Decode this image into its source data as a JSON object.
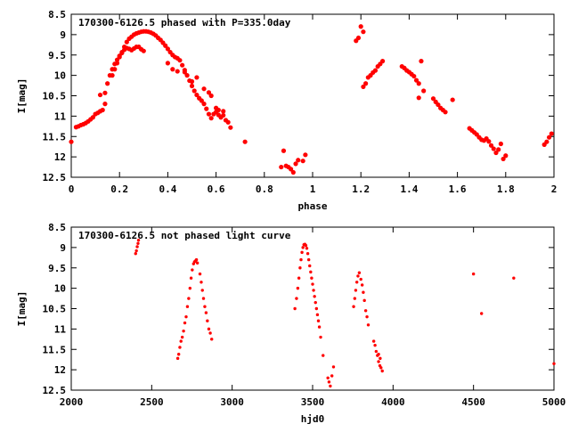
{
  "chart_data": [
    {
      "type": "scatter",
      "title": "170300-6126.5 phased with P=335.0day",
      "xlabel": "phase",
      "ylabel": "I[mag]",
      "xlim": [
        0,
        2
      ],
      "ylim": [
        12.5,
        8.5
      ],
      "y_inverted": true,
      "xticks": [
        "0",
        "0.2",
        "0.4",
        "0.6",
        "0.8",
        "1",
        "1.2",
        "1.4",
        "1.6",
        "1.8",
        "2"
      ],
      "xtick_values": [
        0,
        0.2,
        0.4,
        0.6,
        0.8,
        1.0,
        1.2,
        1.4,
        1.6,
        1.8,
        2.0
      ],
      "yticks": [
        "8.5",
        "9",
        "9.5",
        "10",
        "10.5",
        "11",
        "11.5",
        "12",
        "12.5"
      ],
      "ytick_values": [
        8.5,
        9,
        9.5,
        10,
        10.5,
        11,
        11.5,
        12,
        12.5
      ],
      "grid": false,
      "color": "#ff0000",
      "marker": "filled-circle-large",
      "points": [
        [
          0.0,
          11.63
        ],
        [
          0.02,
          11.27
        ],
        [
          0.03,
          11.25
        ],
        [
          0.04,
          11.22
        ],
        [
          0.05,
          11.2
        ],
        [
          0.06,
          11.17
        ],
        [
          0.07,
          11.13
        ],
        [
          0.08,
          11.08
        ],
        [
          0.09,
          11.03
        ],
        [
          0.1,
          10.95
        ],
        [
          0.11,
          10.92
        ],
        [
          0.12,
          10.88
        ],
        [
          0.13,
          10.85
        ],
        [
          0.14,
          10.7
        ],
        [
          0.12,
          10.48
        ],
        [
          0.14,
          10.43
        ],
        [
          0.15,
          10.2
        ],
        [
          0.16,
          10.0
        ],
        [
          0.17,
          9.85
        ],
        [
          0.18,
          9.72
        ],
        [
          0.19,
          9.62
        ],
        [
          0.2,
          9.52
        ],
        [
          0.21,
          9.43
        ],
        [
          0.22,
          9.37
        ],
        [
          0.23,
          9.33
        ],
        [
          0.24,
          9.35
        ],
        [
          0.25,
          9.38
        ],
        [
          0.26,
          9.34
        ],
        [
          0.27,
          9.3
        ],
        [
          0.28,
          9.3
        ],
        [
          0.29,
          9.36
        ],
        [
          0.3,
          9.4
        ],
        [
          0.17,
          10.0
        ],
        [
          0.18,
          9.85
        ],
        [
          0.19,
          9.7
        ],
        [
          0.2,
          9.55
        ],
        [
          0.21,
          9.45
        ],
        [
          0.22,
          9.3
        ],
        [
          0.23,
          9.18
        ],
        [
          0.24,
          9.1
        ],
        [
          0.25,
          9.05
        ],
        [
          0.26,
          9.0
        ],
        [
          0.27,
          8.97
        ],
        [
          0.28,
          8.95
        ],
        [
          0.29,
          8.93
        ],
        [
          0.3,
          8.92
        ],
        [
          0.31,
          8.92
        ],
        [
          0.32,
          8.93
        ],
        [
          0.33,
          8.95
        ],
        [
          0.34,
          8.98
        ],
        [
          0.35,
          9.02
        ],
        [
          0.36,
          9.08
        ],
        [
          0.37,
          9.13
        ],
        [
          0.38,
          9.2
        ],
        [
          0.39,
          9.27
        ],
        [
          0.4,
          9.35
        ],
        [
          0.41,
          9.43
        ],
        [
          0.42,
          9.5
        ],
        [
          0.43,
          9.55
        ],
        [
          0.44,
          9.58
        ],
        [
          0.45,
          9.63
        ],
        [
          0.46,
          9.75
        ],
        [
          0.47,
          9.87
        ],
        [
          0.48,
          10.0
        ],
        [
          0.49,
          10.13
        ],
        [
          0.5,
          10.26
        ],
        [
          0.51,
          10.38
        ],
        [
          0.52,
          10.48
        ],
        [
          0.53,
          10.56
        ],
        [
          0.54,
          10.62
        ],
        [
          0.55,
          10.7
        ],
        [
          0.56,
          10.82
        ],
        [
          0.57,
          10.95
        ],
        [
          0.58,
          11.05
        ],
        [
          0.59,
          10.95
        ],
        [
          0.6,
          10.9
        ],
        [
          0.61,
          10.97
        ],
        [
          0.62,
          11.03
        ],
        [
          0.63,
          10.98
        ],
        [
          0.64,
          11.1
        ],
        [
          0.65,
          11.15
        ],
        [
          0.66,
          11.28
        ],
        [
          0.4,
          9.7
        ],
        [
          0.42,
          9.85
        ],
        [
          0.44,
          9.9
        ],
        [
          0.47,
          9.92
        ],
        [
          0.5,
          10.15
        ],
        [
          0.52,
          10.05
        ],
        [
          0.55,
          10.33
        ],
        [
          0.57,
          10.42
        ],
        [
          0.58,
          10.5
        ],
        [
          0.6,
          10.8
        ],
        [
          0.61,
          10.85
        ],
        [
          0.63,
          10.88
        ],
        [
          0.72,
          11.63
        ],
        [
          0.87,
          12.25
        ],
        [
          0.88,
          11.85
        ],
        [
          0.89,
          12.22
        ],
        [
          0.9,
          12.25
        ],
        [
          0.91,
          12.3
        ],
        [
          0.92,
          12.38
        ],
        [
          0.93,
          12.17
        ],
        [
          0.94,
          12.08
        ],
        [
          0.96,
          12.1
        ],
        [
          0.97,
          11.95
        ],
        [
          1.18,
          9.15
        ],
        [
          1.19,
          9.08
        ],
        [
          1.2,
          8.8
        ],
        [
          1.21,
          8.93
        ],
        [
          1.21,
          10.28
        ],
        [
          1.22,
          10.2
        ],
        [
          1.23,
          10.05
        ],
        [
          1.24,
          10.0
        ],
        [
          1.25,
          9.93
        ],
        [
          1.26,
          9.88
        ],
        [
          1.27,
          9.78
        ],
        [
          1.28,
          9.72
        ],
        [
          1.29,
          9.65
        ],
        [
          1.37,
          9.78
        ],
        [
          1.38,
          9.82
        ],
        [
          1.39,
          9.88
        ],
        [
          1.4,
          9.92
        ],
        [
          1.41,
          9.97
        ],
        [
          1.42,
          10.02
        ],
        [
          1.43,
          10.12
        ],
        [
          1.44,
          10.2
        ],
        [
          1.45,
          9.65
        ],
        [
          1.44,
          10.55
        ],
        [
          1.46,
          10.38
        ],
        [
          1.5,
          10.57
        ],
        [
          1.51,
          10.65
        ],
        [
          1.52,
          10.72
        ],
        [
          1.53,
          10.8
        ],
        [
          1.54,
          10.85
        ],
        [
          1.55,
          10.9
        ],
        [
          1.58,
          10.6
        ],
        [
          1.65,
          11.3
        ],
        [
          1.66,
          11.35
        ],
        [
          1.67,
          11.4
        ],
        [
          1.68,
          11.45
        ],
        [
          1.69,
          11.52
        ],
        [
          1.7,
          11.58
        ],
        [
          1.71,
          11.6
        ],
        [
          1.72,
          11.55
        ],
        [
          1.73,
          11.62
        ],
        [
          1.74,
          11.72
        ],
        [
          1.75,
          11.8
        ],
        [
          1.76,
          11.9
        ],
        [
          1.77,
          11.82
        ],
        [
          1.78,
          11.68
        ],
        [
          1.79,
          12.05
        ],
        [
          1.8,
          11.97
        ],
        [
          1.96,
          11.7
        ],
        [
          1.97,
          11.63
        ],
        [
          1.98,
          11.52
        ],
        [
          1.99,
          11.43
        ]
      ]
    },
    {
      "type": "scatter",
      "title": "170300-6126.5 not phased light curve",
      "xlabel": "hjd0",
      "ylabel": "I[mag]",
      "xlim": [
        2000,
        5000
      ],
      "ylim": [
        12.5,
        8.5
      ],
      "y_inverted": true,
      "xticks": [
        "2000",
        "2500",
        "3000",
        "3500",
        "4000",
        "4500",
        "5000"
      ],
      "xtick_values": [
        2000,
        2500,
        3000,
        3500,
        4000,
        4500,
        5000
      ],
      "yticks": [
        "8.5",
        "9",
        "9.5",
        "10",
        "10.5",
        "11",
        "11.5",
        "12",
        "12.5"
      ],
      "ytick_values": [
        8.5,
        9,
        9.5,
        10,
        10.5,
        11,
        11.5,
        12,
        12.5
      ],
      "grid": false,
      "color": "#ff0000",
      "marker": "filled-circle-small",
      "points": [
        [
          2400,
          9.15
        ],
        [
          2405,
          9.08
        ],
        [
          2410,
          8.98
        ],
        [
          2415,
          8.9
        ],
        [
          2418,
          8.82
        ],
        [
          2662,
          11.72
        ],
        [
          2668,
          11.62
        ],
        [
          2675,
          11.45
        ],
        [
          2682,
          11.3
        ],
        [
          2690,
          11.2
        ],
        [
          2698,
          11.05
        ],
        [
          2706,
          10.85
        ],
        [
          2714,
          10.7
        ],
        [
          2722,
          10.45
        ],
        [
          2730,
          10.25
        ],
        [
          2738,
          10.0
        ],
        [
          2745,
          9.75
        ],
        [
          2752,
          9.55
        ],
        [
          2760,
          9.4
        ],
        [
          2766,
          9.35
        ],
        [
          2772,
          9.33
        ],
        [
          2778,
          9.3
        ],
        [
          2784,
          9.38
        ],
        [
          2800,
          9.65
        ],
        [
          2808,
          9.85
        ],
        [
          2815,
          10.05
        ],
        [
          2822,
          10.25
        ],
        [
          2830,
          10.45
        ],
        [
          2838,
          10.6
        ],
        [
          2846,
          10.8
        ],
        [
          2855,
          11.0
        ],
        [
          2864,
          11.1
        ],
        [
          2873,
          11.25
        ],
        [
          3390,
          10.5
        ],
        [
          3400,
          10.25
        ],
        [
          3408,
          10.0
        ],
        [
          3415,
          9.75
        ],
        [
          3422,
          9.5
        ],
        [
          3428,
          9.3
        ],
        [
          3434,
          9.12
        ],
        [
          3440,
          9.0
        ],
        [
          3446,
          8.93
        ],
        [
          3452,
          8.92
        ],
        [
          3458,
          8.95
        ],
        [
          3464,
          9.02
        ],
        [
          3470,
          9.15
        ],
        [
          3476,
          9.3
        ],
        [
          3482,
          9.45
        ],
        [
          3488,
          9.6
        ],
        [
          3494,
          9.75
        ],
        [
          3500,
          9.9
        ],
        [
          3506,
          10.05
        ],
        [
          3512,
          10.2
        ],
        [
          3518,
          10.35
        ],
        [
          3524,
          10.5
        ],
        [
          3530,
          10.65
        ],
        [
          3536,
          10.8
        ],
        [
          3542,
          10.95
        ],
        [
          3550,
          11.2
        ],
        [
          3565,
          11.65
        ],
        [
          3595,
          12.2
        ],
        [
          3602,
          12.3
        ],
        [
          3610,
          12.4
        ],
        [
          3620,
          12.15
        ],
        [
          3630,
          11.93
        ],
        [
          3755,
          10.45
        ],
        [
          3762,
          10.25
        ],
        [
          3768,
          10.05
        ],
        [
          3775,
          9.85
        ],
        [
          3782,
          9.7
        ],
        [
          3790,
          9.62
        ],
        [
          3800,
          9.78
        ],
        [
          3808,
          9.92
        ],
        [
          3815,
          10.1
        ],
        [
          3822,
          10.3
        ],
        [
          3830,
          10.55
        ],
        [
          3838,
          10.7
        ],
        [
          3846,
          10.9
        ],
        [
          3880,
          11.3
        ],
        [
          3888,
          11.4
        ],
        [
          3895,
          11.55
        ],
        [
          3903,
          11.65
        ],
        [
          3910,
          11.8
        ],
        [
          3918,
          11.9
        ],
        [
          3925,
          11.95
        ],
        [
          3933,
          12.03
        ],
        [
          3910,
          11.62
        ],
        [
          3920,
          11.72
        ],
        [
          4500,
          9.65
        ],
        [
          4550,
          10.62
        ],
        [
          4750,
          9.75
        ],
        [
          5000,
          11.85
        ]
      ]
    }
  ]
}
